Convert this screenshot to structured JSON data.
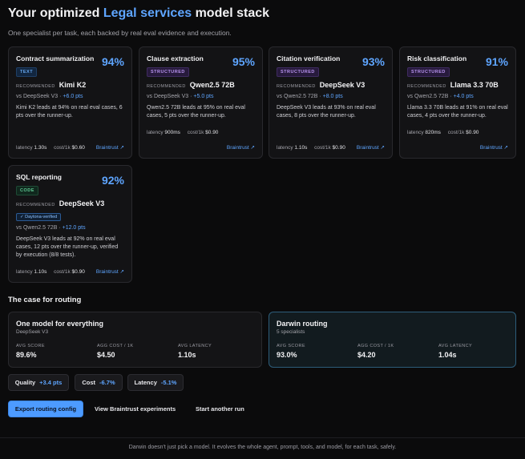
{
  "header": {
    "title_prefix": "Your optimized",
    "title_accent": "Legal services",
    "title_suffix": "model stack",
    "subtitle": "One specialist per task, each backed by real eval evidence and execution."
  },
  "labels": {
    "recommended": "RECOMMENDED",
    "latency": "latency",
    "cost": "cost/1k",
    "link": "Braintrust ↗",
    "verified": "✓ Daytona-verified"
  },
  "cards": [
    {
      "task": "Contract summarization",
      "score": "94%",
      "tag": "TEXT",
      "model": "Kimi K2",
      "vs_model": "vs DeepSeek V3",
      "delta": "+6.0 pts",
      "desc": "Kimi K2 leads at 94% on real eval cases, 6 pts over the runner-up.",
      "latency": "1.30s",
      "cost": "$0.60"
    },
    {
      "task": "Clause extraction",
      "score": "95%",
      "tag": "STRUCTURED",
      "model": "Qwen2.5 72B",
      "vs_model": "vs DeepSeek V3",
      "delta": "+5.0 pts",
      "desc": "Qwen2.5 72B leads at 95% on real eval cases, 5 pts over the runner-up.",
      "latency": "900ms",
      "cost": "$0.90"
    },
    {
      "task": "Citation verification",
      "score": "93%",
      "tag": "STRUCTURED",
      "model": "DeepSeek V3",
      "vs_model": "vs Qwen2.5 72B",
      "delta": "+8.0 pts",
      "desc": "DeepSeek V3 leads at 93% on real eval cases, 8 pts over the runner-up.",
      "latency": "1.10s",
      "cost": "$0.90"
    },
    {
      "task": "Risk classification",
      "score": "91%",
      "tag": "STRUCTURED",
      "model": "Llama 3.3 70B",
      "vs_model": "vs Qwen2.5 72B",
      "delta": "+4.0 pts",
      "desc": "Llama 3.3 70B leads at 91% on real eval cases, 4 pts over the runner-up.",
      "latency": "820ms",
      "cost": "$0.90"
    },
    {
      "task": "SQL reporting",
      "score": "92%",
      "tag": "CODE",
      "model": "DeepSeek V3",
      "vs_model": "vs Qwen2.5 72B",
      "delta": "+12.0 pts",
      "desc": "DeepSeek V3 leads at 92% on real eval cases, 12 pts over the runner-up, verified by execution (8/8 tests).",
      "latency": "1.10s",
      "cost": "$0.90"
    }
  ],
  "routing": {
    "section_title": "The case for routing",
    "single": {
      "title": "One model for everything",
      "subtitle": "DeepSeek V3",
      "score_label": "AVG SCORE",
      "score": "89.6%",
      "cost_label": "AGG COST / 1K",
      "cost": "$4.50",
      "latency_label": "AVG LATENCY",
      "latency": "1.10s"
    },
    "darwin": {
      "title": "Darwin routing",
      "subtitle": "5 specialists",
      "score_label": "AVG SCORE",
      "score": "93.0%",
      "cost_label": "AGG COST / 1K",
      "cost": "$4.20",
      "latency_label": "AVG LATENCY",
      "latency": "1.04s"
    }
  },
  "deltas": {
    "quality_label": "Quality",
    "quality": "+3.4 pts",
    "cost_label": "Cost",
    "cost": "-6.7%",
    "latency_label": "Latency",
    "latency": "-5.1%"
  },
  "actions": {
    "export": "Export routing config",
    "view": "View Braintrust experiments",
    "restart": "Start another run"
  },
  "footer": "Darwin doesn't just pick a model. It evolves the whole agent, prompt, tools, and model, for each task, safely.",
  "colors": {
    "accent": "#5ea5ff",
    "background": "#0b0b0c",
    "card": "#131315",
    "tag_text": "#67a8f0",
    "tag_structured": "#b893f0",
    "tag_code": "#5fc994"
  }
}
